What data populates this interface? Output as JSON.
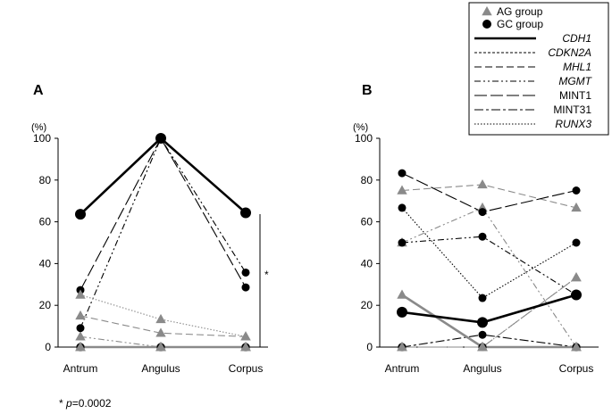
{
  "chart_data": [
    {
      "type": "line",
      "panel": "A",
      "ylabel": "(%)",
      "categories": [
        "Antrum",
        "Angulus",
        "Corpus"
      ],
      "ylim": [
        0,
        100
      ],
      "yticks": [
        0,
        20,
        40,
        60,
        80,
        100
      ],
      "significance_mark": "*",
      "series": [
        {
          "name": "CDH1",
          "group": "AG group",
          "values": [
            0,
            0,
            0
          ]
        },
        {
          "name": "CDH1",
          "group": "GC group",
          "values": [
            63.6,
            100,
            64.3
          ]
        },
        {
          "name": "CDKN2A",
          "group": "AG group",
          "values": [
            0,
            0,
            0
          ]
        },
        {
          "name": "CDKN2A",
          "group": "GC group",
          "values": [
            0,
            0,
            0
          ]
        },
        {
          "name": "MHL1",
          "group": "AG group",
          "values": [
            15,
            6.7,
            5
          ]
        },
        {
          "name": "MHL1",
          "group": "GC group",
          "values": [
            0,
            0,
            0
          ]
        },
        {
          "name": "MGMT",
          "group": "AG group",
          "values": [
            5,
            0,
            0
          ]
        },
        {
          "name": "MGMT",
          "group": "GC group",
          "values": [
            9.1,
            100,
            35.7
          ]
        },
        {
          "name": "MINT1",
          "group": "AG group",
          "values": [
            0,
            0,
            0
          ]
        },
        {
          "name": "MINT1",
          "group": "GC group",
          "values": [
            27.3,
            100,
            28.6
          ]
        },
        {
          "name": "MINT31",
          "group": "AG group",
          "values": [
            0,
            0,
            0
          ]
        },
        {
          "name": "MINT31",
          "group": "GC group",
          "values": [
            0,
            0,
            0
          ]
        },
        {
          "name": "RUNX3",
          "group": "AG group",
          "values": [
            25,
            13.3,
            5
          ]
        },
        {
          "name": "RUNX3",
          "group": "GC group",
          "values": [
            0,
            0,
            0
          ]
        }
      ]
    },
    {
      "type": "line",
      "panel": "B",
      "ylabel": "(%)",
      "categories": [
        "Antrum",
        "Angulus",
        "Corpus"
      ],
      "ylim": [
        0,
        100
      ],
      "yticks": [
        0,
        20,
        40,
        60,
        80,
        100
      ],
      "series": [
        {
          "name": "CDH1",
          "group": "AG group",
          "values": [
            25,
            0,
            0
          ]
        },
        {
          "name": "CDH1",
          "group": "GC group",
          "values": [
            16.7,
            11.8,
            25
          ]
        },
        {
          "name": "CDKN2A",
          "group": "AG group",
          "values": [
            0,
            0,
            0
          ]
        },
        {
          "name": "CDKN2A",
          "group": "GC group",
          "values": [
            0,
            0,
            0
          ]
        },
        {
          "name": "MHL1",
          "group": "AG group",
          "values": [
            75,
            77.8,
            66.7
          ]
        },
        {
          "name": "MHL1",
          "group": "GC group",
          "values": [
            0,
            0,
            0
          ]
        },
        {
          "name": "MGMT",
          "group": "AG group",
          "values": [
            50,
            66.7,
            0
          ]
        },
        {
          "name": "MGMT",
          "group": "GC group",
          "values": [
            50,
            52.9,
            25
          ]
        },
        {
          "name": "MINT1",
          "group": "AG group",
          "values": [
            0,
            0,
            33.3
          ]
        },
        {
          "name": "MINT1",
          "group": "GC group",
          "values": [
            83.3,
            64.7,
            75
          ]
        },
        {
          "name": "MINT31",
          "group": "AG group",
          "values": [
            0,
            0,
            0
          ]
        },
        {
          "name": "MINT31",
          "group": "GC group",
          "values": [
            0,
            5.9,
            0
          ]
        },
        {
          "name": "RUNX3",
          "group": "AG group",
          "values": [
            0,
            0,
            33.3
          ]
        },
        {
          "name": "RUNX3",
          "group": "GC group",
          "values": [
            66.7,
            23.5,
            50
          ]
        }
      ]
    }
  ],
  "legend": {
    "groups": [
      {
        "label": "AG group",
        "marker": "triangle"
      },
      {
        "label": "GC group",
        "marker": "circle"
      }
    ],
    "genes": [
      {
        "label": "CDH1",
        "italic": true,
        "dash": "solid"
      },
      {
        "label": "CDKN2A",
        "italic": true,
        "dash": "dotted-dense"
      },
      {
        "label": "MHL1",
        "italic": true,
        "dash": "dashed"
      },
      {
        "label": "MGMT",
        "italic": true,
        "dash": "dash-dot-dot"
      },
      {
        "label": "MINT1",
        "italic": false,
        "dash": "long-dash"
      },
      {
        "label": "MINT31",
        "italic": false,
        "dash": "dash-dot"
      },
      {
        "label": "RUNX3",
        "italic": true,
        "dash": "dotted"
      }
    ]
  },
  "footnote": {
    "star": "* ",
    "p": "p",
    "value": "=0.0002"
  },
  "colors": {
    "ag": "#8a8a8a",
    "gc": "#000000"
  }
}
